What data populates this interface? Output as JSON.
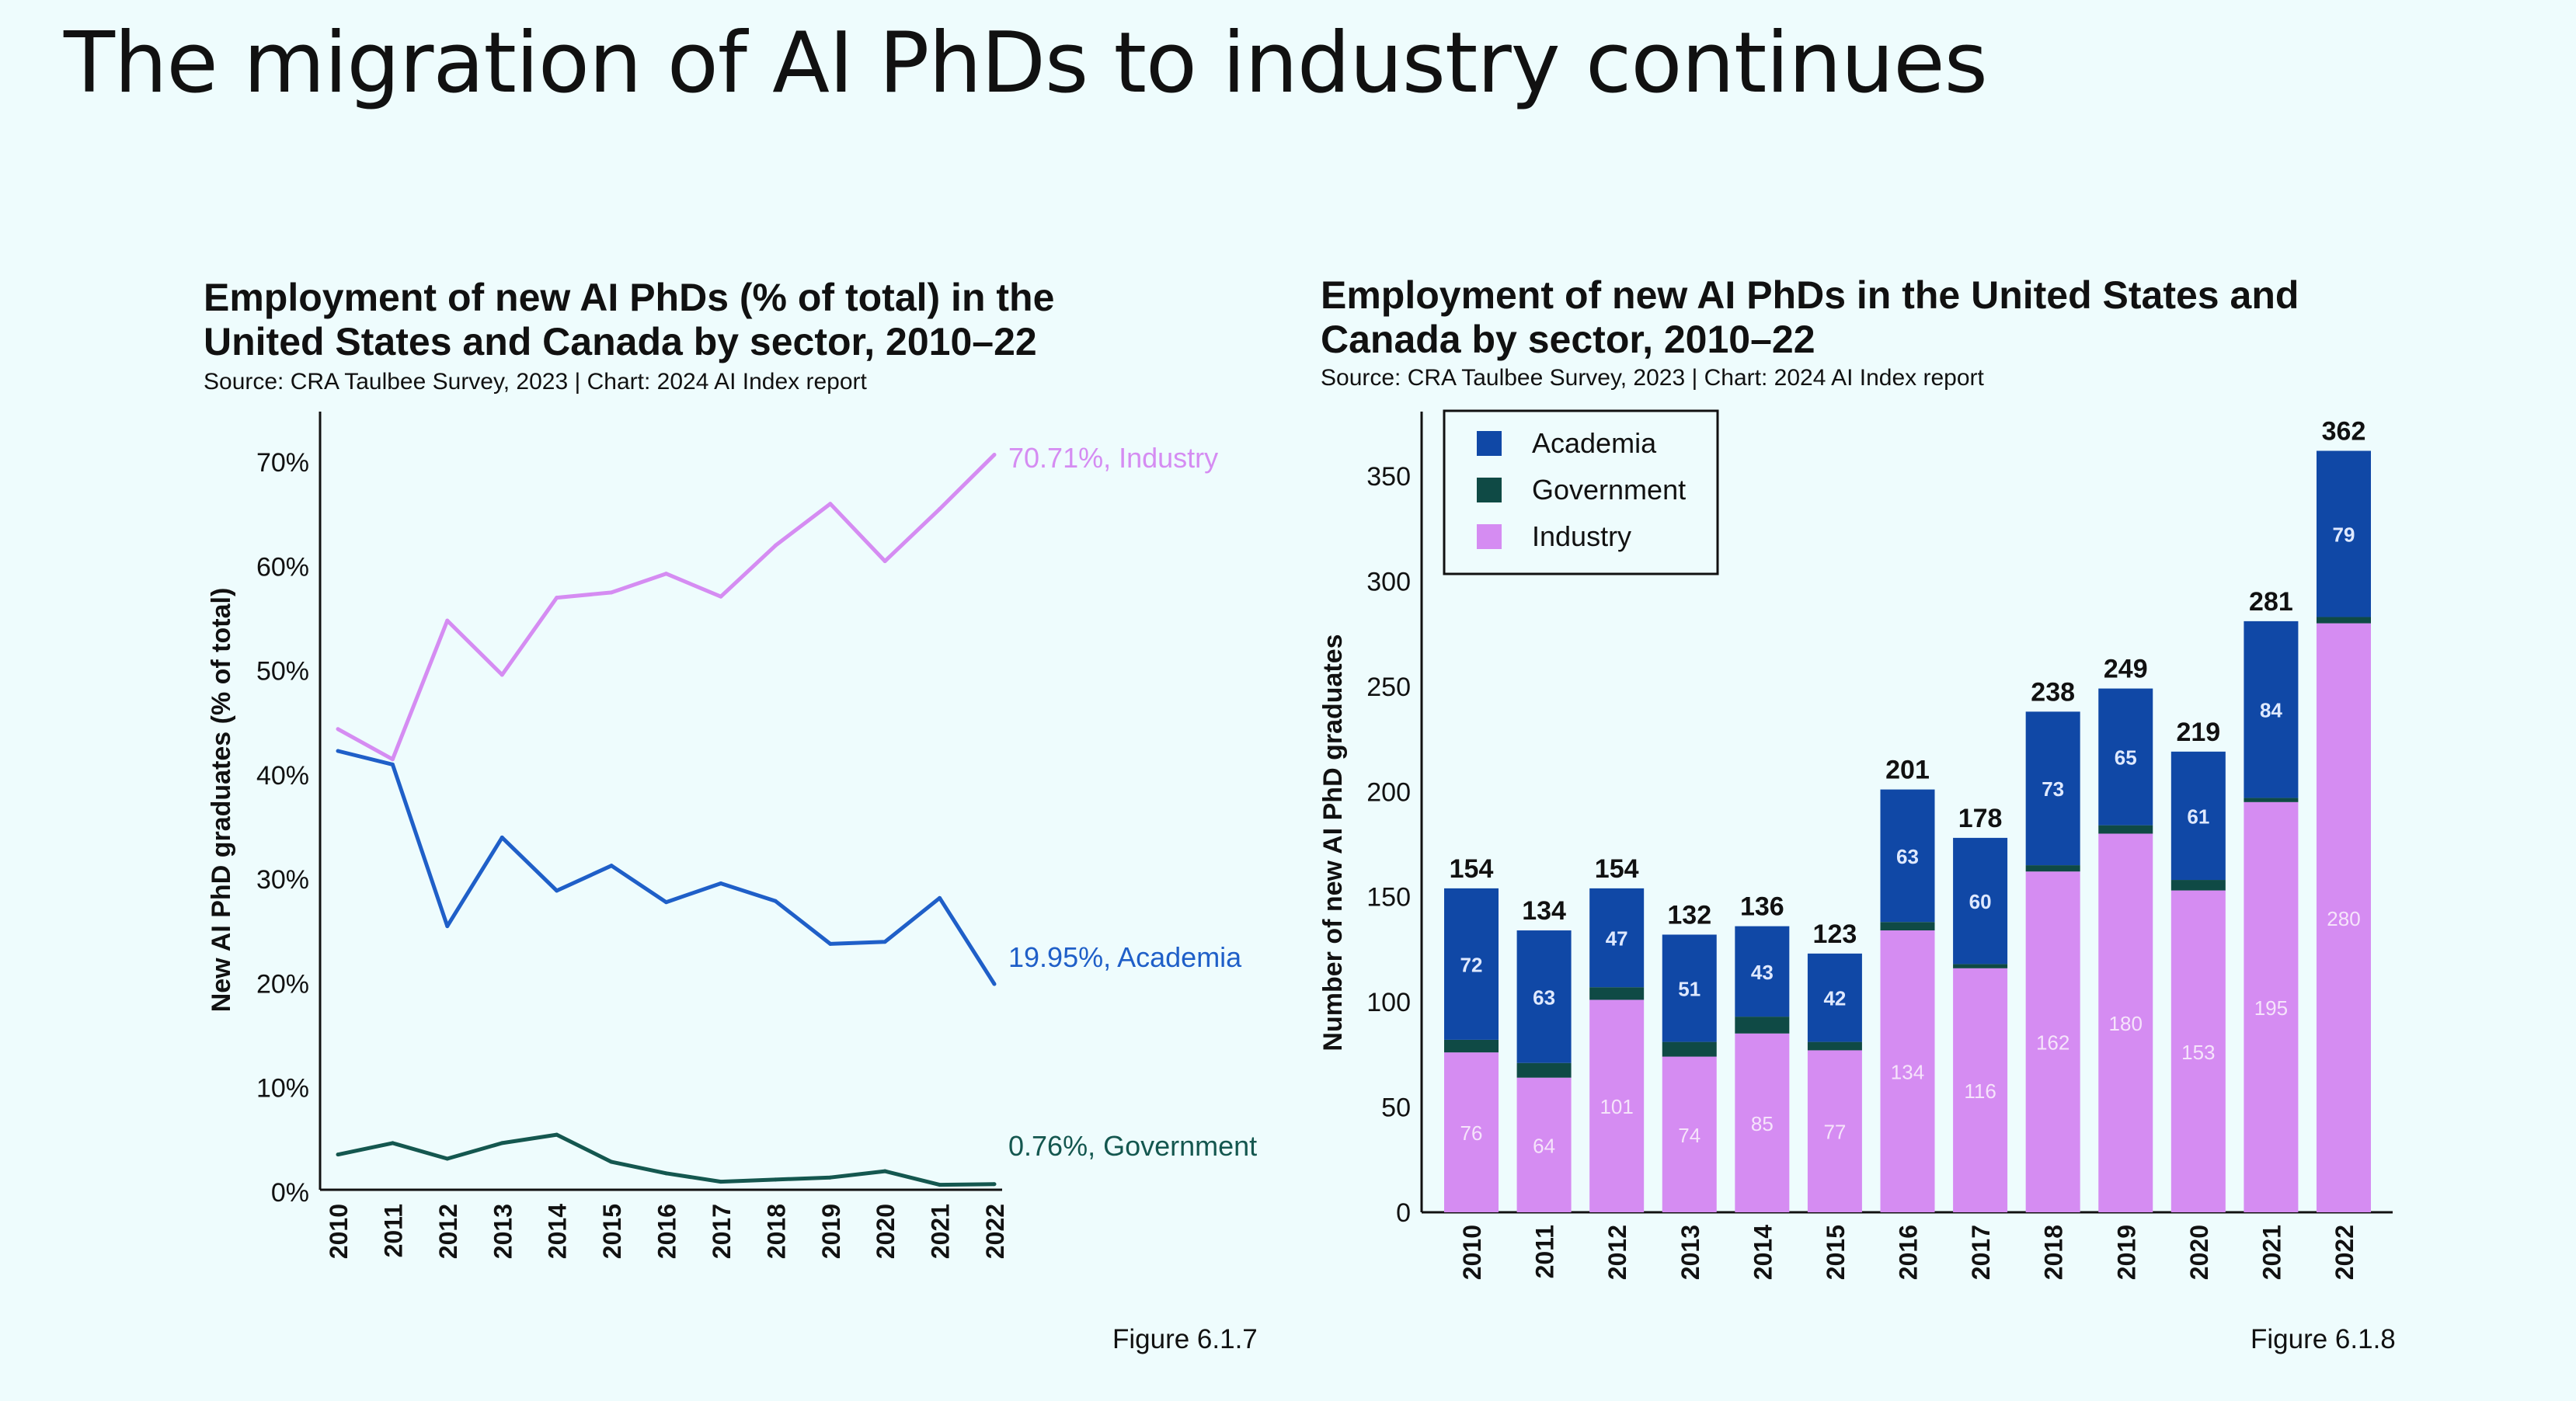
{
  "slide_title": "The migration of AI PhDs to industry continues",
  "colors": {
    "background": "#eefcfd",
    "industry": "#d58cf2",
    "academia": "#1f5fc8",
    "academia_bar": "#1048a6",
    "government": "#14574f",
    "government_bar": "#0f4a45"
  },
  "chart_data": [
    {
      "type": "line",
      "title": "Employment of new AI PhDs (% of total) in the United States and Canada by sector, 2010–22",
      "title_lines": [
        "Employment of new AI PhDs (% of total) in the",
        "United States and Canada by sector, 2010–22"
      ],
      "source": "Source: CRA Taulbee Survey, 2023 | Chart: 2024 AI Index report",
      "ylabel": "New AI PhD graduates (% of total)",
      "xlabel": "",
      "x": [
        "2010",
        "2011",
        "2012",
        "2013",
        "2014",
        "2015",
        "2016",
        "2017",
        "2018",
        "2019",
        "2020",
        "2021",
        "2022"
      ],
      "yticks": [
        "0%",
        "10%",
        "20%",
        "30%",
        "40%",
        "50%",
        "60%",
        "70%"
      ],
      "ylim": [
        0,
        75
      ],
      "grid": false,
      "series": [
        {
          "name": "Industry",
          "color": "#d58cf2",
          "end_label": "70.71%, Industry",
          "values": [
            44.4,
            41.5,
            54.8,
            49.6,
            57.0,
            57.5,
            59.3,
            57.1,
            62.0,
            66.0,
            60.5,
            65.5,
            70.71
          ]
        },
        {
          "name": "Academia",
          "color": "#1f5fc8",
          "end_label": "19.95%, Academia",
          "values": [
            42.3,
            41.0,
            25.5,
            34.0,
            28.9,
            31.3,
            27.8,
            29.6,
            27.9,
            23.8,
            24.0,
            28.2,
            19.95
          ]
        },
        {
          "name": "Government",
          "color": "#14574f",
          "end_label": "0.76%, Government",
          "values": [
            3.6,
            4.7,
            3.2,
            4.7,
            5.5,
            2.9,
            1.8,
            1.0,
            1.2,
            1.4,
            2.0,
            0.7,
            0.76
          ]
        }
      ],
      "caption": "Figure 6.1.7"
    },
    {
      "type": "bar",
      "stacked": true,
      "title": "Employment of new AI PhDs in the United States and Canada by sector, 2010–22",
      "title_lines": [
        "Employment of new AI PhDs in the United States and",
        "Canada by sector, 2010–22"
      ],
      "source": "Source: CRA Taulbee Survey, 2023 | Chart: 2024 AI Index report",
      "ylabel": "Number of new AI PhD graduates",
      "xlabel": "",
      "categories": [
        "2010",
        "2011",
        "2012",
        "2013",
        "2014",
        "2015",
        "2016",
        "2017",
        "2018",
        "2019",
        "2020",
        "2021",
        "2022"
      ],
      "yticks": [
        "0",
        "50",
        "100",
        "150",
        "200",
        "250",
        "300",
        "350"
      ],
      "ylim": [
        0,
        380
      ],
      "grid": false,
      "legend_position": "top-left",
      "legend": [
        "Academia",
        "Government",
        "Industry"
      ],
      "series": [
        {
          "name": "Industry",
          "color": "#d58cf2",
          "values": [
            76,
            64,
            101,
            74,
            85,
            77,
            134,
            116,
            162,
            180,
            153,
            195,
            280
          ]
        },
        {
          "name": "Government",
          "color": "#0f4a45",
          "values": [
            6,
            7,
            6,
            7,
            8,
            4,
            4,
            2,
            3,
            4,
            5,
            2,
            3
          ]
        },
        {
          "name": "Academia",
          "color": "#1048a6",
          "values": [
            72,
            63,
            47,
            51,
            43,
            42,
            63,
            60,
            73,
            65,
            61,
            84,
            79
          ]
        }
      ],
      "totals": [
        154,
        134,
        154,
        132,
        136,
        123,
        201,
        178,
        238,
        249,
        219,
        281,
        362
      ],
      "caption": "Figure 6.1.8"
    }
  ]
}
